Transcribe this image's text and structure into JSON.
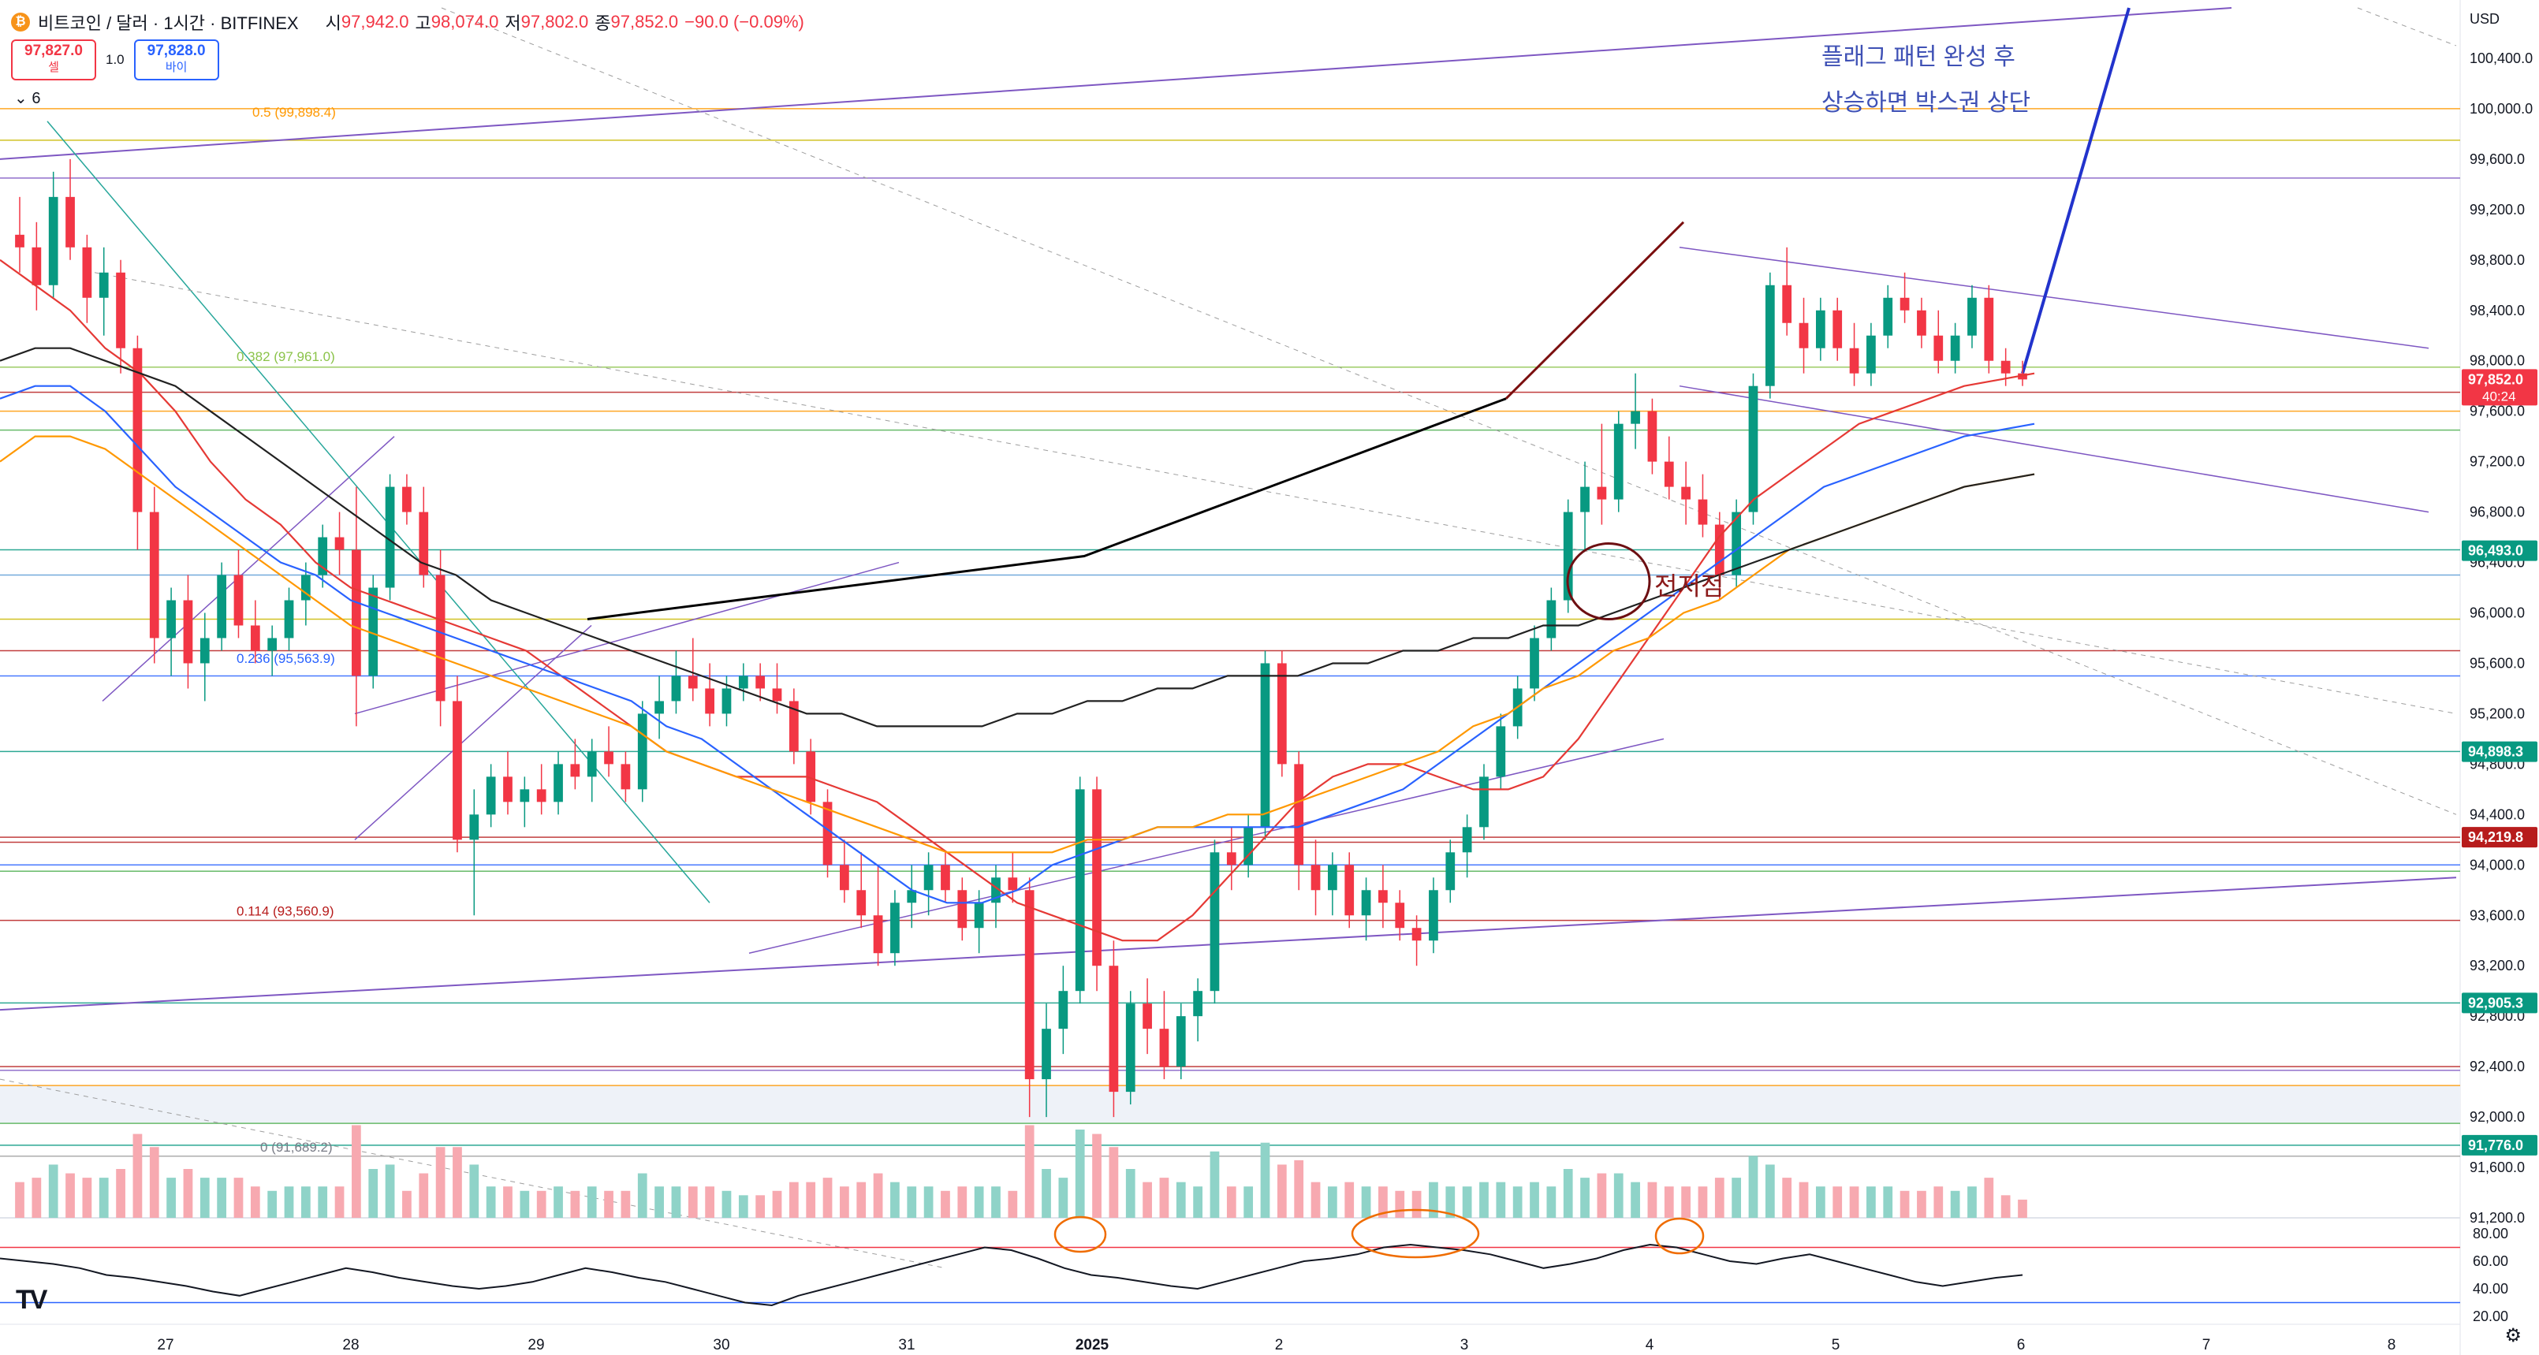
{
  "header": {
    "coin_icon": "₿",
    "symbol": "비트코인 / 달러 · 1시간 · BITFINEX",
    "open_label": "시",
    "open": "97,942.0",
    "high_label": "고",
    "high": "98,074.0",
    "low_label": "저",
    "low": "97,802.0",
    "close_label": "종",
    "close": "97,852.0",
    "change": "−90.0 (−0.09%)"
  },
  "trade": {
    "sell_price": "97,827.0",
    "sell_label": "셀",
    "spread": "1.0",
    "buy_price": "97,828.0",
    "buy_label": "바이"
  },
  "indicators_toggle": {
    "icon": "chevron-down-icon",
    "count": "6"
  },
  "price_axis": {
    "currency": "USD",
    "labels": [
      "100,400.0",
      "100,000.0",
      "99,600.0",
      "99,200.0",
      "98,800.0",
      "98,400.0",
      "98,000.0",
      "97,600.0",
      "97,200.0",
      "96,800.0",
      "96,400.0",
      "96,000.0",
      "95,600.0",
      "95,200.0",
      "94,800.0",
      "94,400.0",
      "94,000.0",
      "93,600.0",
      "93,200.0",
      "92,800.0",
      "92,400.0",
      "92,000.0",
      "91,600.0",
      "91,200.0"
    ],
    "badges": [
      {
        "text": "97,852.0",
        "sub": "40:24",
        "color": "#f23645"
      },
      {
        "text": "96,493.0",
        "color": "#089981"
      },
      {
        "text": "94,898.3",
        "color": "#089981"
      },
      {
        "text": "94,219.8",
        "color": "#b71c1c"
      },
      {
        "text": "92,905.3",
        "color": "#089981"
      },
      {
        "text": "91,776.0",
        "color": "#089981"
      }
    ]
  },
  "rsi_axis": {
    "labels": [
      "80.00",
      "60.00",
      "40.00",
      "20.00"
    ]
  },
  "time_axis": {
    "labels": [
      "27",
      "28",
      "29",
      "30",
      "31",
      "2025",
      "2",
      "3",
      "4",
      "5",
      "6",
      "7",
      "8"
    ]
  },
  "fib_labels": [
    "0.5 (99,898.4)",
    "0.382 (97,961.0)",
    "0.236 (95,563.9)",
    "0.114 (93,560.9)",
    "0 (91,689.2)"
  ],
  "annotations": {
    "title_line1": "플래그 패턴 완성 후",
    "title_line2": "상승하면 박스권 상단",
    "prior_low": "전저점"
  },
  "colors": {
    "up": "#089981",
    "down": "#f23645",
    "ma_fast": "#e53935",
    "ma_mid": "#2962ff",
    "ma_slow": "#ff9800",
    "ma_long": "#212121",
    "channel": "#7e57c2"
  },
  "chart_data": {
    "type": "candlestick",
    "symbol": "BTC/USD 1h BITFINEX",
    "ylim": [
      91200,
      100800
    ],
    "x_dates": [
      "27",
      "28",
      "29",
      "30",
      "31",
      "2025",
      "2",
      "3",
      "4",
      "5",
      "6",
      "7",
      "8"
    ],
    "candles": [
      [
        99000,
        99300,
        98700,
        98900
      ],
      [
        98900,
        99100,
        98400,
        98600
      ],
      [
        98600,
        99500,
        98500,
        99300
      ],
      [
        99300,
        99600,
        98800,
        98900
      ],
      [
        98900,
        99000,
        98300,
        98500
      ],
      [
        98500,
        98900,
        98200,
        98700
      ],
      [
        98700,
        98800,
        97900,
        98100
      ],
      [
        98100,
        98200,
        96500,
        96800
      ],
      [
        96800,
        97000,
        95600,
        95800
      ],
      [
        95800,
        96200,
        95500,
        96100
      ],
      [
        96100,
        96300,
        95400,
        95600
      ],
      [
        95600,
        96000,
        95300,
        95800
      ],
      [
        95800,
        96400,
        95700,
        96300
      ],
      [
        96300,
        96500,
        95800,
        95900
      ],
      [
        95900,
        96100,
        95600,
        95700
      ],
      [
        95700,
        95900,
        95500,
        95800
      ],
      [
        95800,
        96200,
        95700,
        96100
      ],
      [
        96100,
        96400,
        95900,
        96300
      ],
      [
        96300,
        96700,
        96200,
        96600
      ],
      [
        96600,
        96800,
        96300,
        96500
      ],
      [
        96500,
        97000,
        95100,
        95500
      ],
      [
        95500,
        96300,
        95400,
        96200
      ],
      [
        96200,
        97100,
        96100,
        97000
      ],
      [
        97000,
        97100,
        96700,
        96800
      ],
      [
        96800,
        97000,
        96200,
        96300
      ],
      [
        96300,
        96500,
        95100,
        95300
      ],
      [
        95300,
        95500,
        94100,
        94200
      ],
      [
        94200,
        94600,
        93600,
        94400
      ],
      [
        94400,
        94800,
        94300,
        94700
      ],
      [
        94700,
        94900,
        94400,
        94500
      ],
      [
        94500,
        94700,
        94300,
        94600
      ],
      [
        94600,
        94800,
        94400,
        94500
      ],
      [
        94500,
        94900,
        94400,
        94800
      ],
      [
        94800,
        95000,
        94600,
        94700
      ],
      [
        94700,
        95000,
        94500,
        94900
      ],
      [
        94900,
        95100,
        94700,
        94800
      ],
      [
        94800,
        94900,
        94500,
        94600
      ],
      [
        94600,
        95300,
        94500,
        95200
      ],
      [
        95200,
        95500,
        95000,
        95300
      ],
      [
        95300,
        95700,
        95200,
        95500
      ],
      [
        95500,
        95800,
        95300,
        95400
      ],
      [
        95400,
        95600,
        95100,
        95200
      ],
      [
        95200,
        95500,
        95100,
        95400
      ],
      [
        95400,
        95600,
        95300,
        95500
      ],
      [
        95500,
        95600,
        95300,
        95400
      ],
      [
        95400,
        95600,
        95200,
        95300
      ],
      [
        95300,
        95400,
        94800,
        94900
      ],
      [
        94900,
        95000,
        94400,
        94500
      ],
      [
        94500,
        94600,
        93900,
        94000
      ],
      [
        94000,
        94200,
        93700,
        93800
      ],
      [
        93800,
        94100,
        93500,
        93600
      ],
      [
        93600,
        94000,
        93200,
        93300
      ],
      [
        93300,
        93800,
        93200,
        93700
      ],
      [
        93700,
        94000,
        93500,
        93800
      ],
      [
        93800,
        94100,
        93600,
        94000
      ],
      [
        94000,
        94100,
        93700,
        93800
      ],
      [
        93800,
        93900,
        93400,
        93500
      ],
      [
        93500,
        93800,
        93300,
        93700
      ],
      [
        93700,
        94000,
        93500,
        93900
      ],
      [
        93900,
        94100,
        93700,
        93800
      ],
      [
        93800,
        93900,
        92000,
        92300
      ],
      [
        92300,
        92900,
        92000,
        92700
      ],
      [
        92700,
        93200,
        92500,
        93000
      ],
      [
        93000,
        94700,
        92900,
        94600
      ],
      [
        94600,
        94700,
        93000,
        93200
      ],
      [
        93200,
        93400,
        92000,
        92200
      ],
      [
        92200,
        93000,
        92100,
        92900
      ],
      [
        92900,
        93100,
        92500,
        92700
      ],
      [
        92700,
        93000,
        92300,
        92400
      ],
      [
        92400,
        92900,
        92300,
        92800
      ],
      [
        92800,
        93100,
        92600,
        93000
      ],
      [
        93000,
        94200,
        92900,
        94100
      ],
      [
        94100,
        94300,
        93800,
        94000
      ],
      [
        94000,
        94400,
        93900,
        94300
      ],
      [
        94300,
        95700,
        94200,
        95600
      ],
      [
        95600,
        95700,
        94700,
        94800
      ],
      [
        94800,
        94900,
        93800,
        94000
      ],
      [
        94000,
        94200,
        93600,
        93800
      ],
      [
        93800,
        94100,
        93600,
        94000
      ],
      [
        94000,
        94100,
        93500,
        93600
      ],
      [
        93600,
        93900,
        93400,
        93800
      ],
      [
        93800,
        94000,
        93500,
        93700
      ],
      [
        93700,
        93800,
        93400,
        93500
      ],
      [
        93500,
        93600,
        93200,
        93400
      ],
      [
        93400,
        93900,
        93300,
        93800
      ],
      [
        93800,
        94200,
        93700,
        94100
      ],
      [
        94100,
        94400,
        93900,
        94300
      ],
      [
        94300,
        94800,
        94200,
        94700
      ],
      [
        94700,
        95200,
        94600,
        95100
      ],
      [
        95100,
        95500,
        95000,
        95400
      ],
      [
        95400,
        95900,
        95300,
        95800
      ],
      [
        95800,
        96200,
        95700,
        96100
      ],
      [
        96100,
        96900,
        96000,
        96800
      ],
      [
        96800,
        97200,
        96500,
        97000
      ],
      [
        97000,
        97500,
        96700,
        96900
      ],
      [
        96900,
        97600,
        96800,
        97500
      ],
      [
        97500,
        97900,
        97300,
        97600
      ],
      [
        97600,
        97700,
        97100,
        97200
      ],
      [
        97200,
        97400,
        96900,
        97000
      ],
      [
        97000,
        97200,
        96700,
        96900
      ],
      [
        96900,
        97100,
        96600,
        96700
      ],
      [
        96700,
        96800,
        96100,
        96300
      ],
      [
        96300,
        96900,
        96200,
        96800
      ],
      [
        96800,
        97900,
        96700,
        97800
      ],
      [
        97800,
        98700,
        97700,
        98600
      ],
      [
        98600,
        98900,
        98200,
        98300
      ],
      [
        98300,
        98500,
        97900,
        98100
      ],
      [
        98100,
        98500,
        98000,
        98400
      ],
      [
        98400,
        98500,
        98000,
        98100
      ],
      [
        98100,
        98300,
        97800,
        97900
      ],
      [
        97900,
        98300,
        97800,
        98200
      ],
      [
        98200,
        98600,
        98100,
        98500
      ],
      [
        98500,
        98700,
        98300,
        98400
      ],
      [
        98400,
        98500,
        98100,
        98200
      ],
      [
        98200,
        98400,
        97900,
        98000
      ],
      [
        98000,
        98300,
        97900,
        98200
      ],
      [
        98200,
        98600,
        98100,
        98500
      ],
      [
        98500,
        98600,
        97900,
        98000
      ],
      [
        98000,
        98100,
        97800,
        97900
      ],
      [
        97900,
        98000,
        97800,
        97852
      ]
    ],
    "ma_series": [
      {
        "values": [
          98800,
          98600,
          98400,
          98100,
          97900,
          97600,
          97200,
          96900,
          96700,
          96400,
          96200,
          96100,
          96000,
          95900,
          95800,
          95700,
          95500,
          95300,
          95100,
          94900,
          94800,
          94700,
          94700,
          94700,
          94600,
          94500,
          94300,
          94100,
          93900,
          93700,
          93600,
          93500,
          93400,
          93400,
          93600,
          93900,
          94200,
          94500,
          94700,
          94800,
          94800,
          94700,
          94600,
          94600,
          94700,
          95000,
          95400,
          95800,
          96200,
          96600,
          96900,
          97100,
          97300,
          97500,
          97600,
          97700,
          97800,
          97850,
          97900
        ]
      },
      {
        "values": [
          97700,
          97800,
          97800,
          97600,
          97300,
          97000,
          96800,
          96600,
          96400,
          96300,
          96100,
          96000,
          95900,
          95800,
          95700,
          95600,
          95500,
          95400,
          95300,
          95100,
          95000,
          94800,
          94600,
          94400,
          94200,
          94000,
          93800,
          93700,
          93700,
          93800,
          94000,
          94100,
          94200,
          94300,
          94300,
          94300,
          94300,
          94300,
          94400,
          94500,
          94600,
          94800,
          95000,
          95200,
          95400,
          95600,
          95800,
          96000,
          96200,
          96400,
          96600,
          96800,
          97000,
          97100,
          97200,
          97300,
          97400,
          97450,
          97500
        ]
      },
      {
        "values": [
          97200,
          97400,
          97400,
          97300,
          97100,
          96900,
          96700,
          96500,
          96300,
          96100,
          95900,
          95800,
          95700,
          95600,
          95500,
          95400,
          95300,
          95200,
          95100,
          94900,
          94800,
          94700,
          94600,
          94500,
          94400,
          94300,
          94200,
          94100,
          94100,
          94100,
          94100,
          94200,
          94200,
          94300,
          94300,
          94400,
          94400,
          94500,
          94600,
          94700,
          94800,
          94900,
          95100,
          95200,
          95400,
          95500,
          95700,
          95800,
          96000,
          96100,
          96300,
          96500,
          96600,
          96700,
          96800,
          96900,
          97000,
          97050,
          97100
        ]
      },
      {
        "values": [
          98000,
          98100,
          98100,
          98000,
          97900,
          97800,
          97600,
          97400,
          97200,
          97000,
          96800,
          96600,
          96400,
          96300,
          96100,
          96000,
          95900,
          95800,
          95700,
          95600,
          95500,
          95400,
          95300,
          95200,
          95200,
          95100,
          95100,
          95100,
          95100,
          95200,
          95200,
          95300,
          95300,
          95400,
          95400,
          95500,
          95500,
          95500,
          95600,
          95600,
          95700,
          95700,
          95800,
          95800,
          95900,
          95900,
          96000,
          96100,
          96200,
          96300,
          96400,
          96500,
          96600,
          96700,
          96800,
          96900,
          97000,
          97050,
          97100
        ]
      }
    ],
    "volume_scale": "relative",
    "rsi": {
      "ylim": [
        20,
        80
      ],
      "upper": 70,
      "lower": 30,
      "values": [
        62,
        60,
        58,
        55,
        50,
        48,
        45,
        42,
        38,
        35,
        40,
        45,
        50,
        55,
        52,
        48,
        45,
        42,
        40,
        42,
        45,
        50,
        55,
        52,
        48,
        45,
        40,
        35,
        30,
        28,
        35,
        40,
        45,
        50,
        55,
        60,
        65,
        70,
        68,
        62,
        55,
        50,
        48,
        45,
        42,
        40,
        45,
        50,
        55,
        60,
        62,
        65,
        70,
        72,
        70,
        68,
        65,
        60,
        55,
        58,
        62,
        68,
        72,
        70,
        65,
        60,
        58,
        62,
        65,
        60,
        55,
        50,
        45,
        42,
        45,
        48,
        50
      ]
    },
    "fibonacci": [
      {
        "level": "0.5",
        "price": 99898.4
      },
      {
        "level": "0.382",
        "price": 97961.0
      },
      {
        "level": "0.236",
        "price": 95563.9
      },
      {
        "level": "0.114",
        "price": 93560.9
      },
      {
        "level": "0",
        "price": 91689.2
      }
    ]
  }
}
